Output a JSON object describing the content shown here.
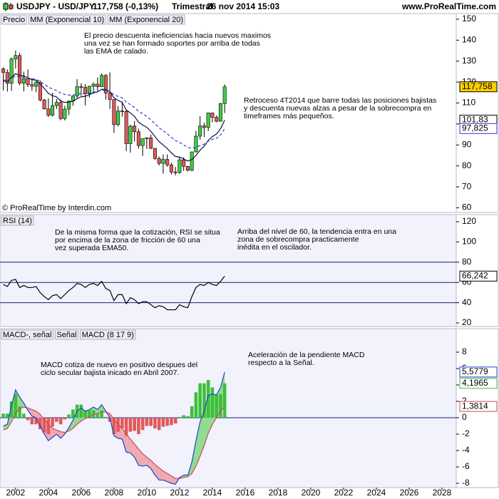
{
  "header": {
    "symbol": "USDJPY - USD/JPY",
    "quote": "117,758 (-0,13%)",
    "period": "Trimestral",
    "date": "26 nov 2014 15:03",
    "site": "www.ProRealTime.com"
  },
  "chart_data": [
    {
      "type": "candlestick",
      "background": "#ffffff",
      "x": [
        2001.25,
        2001.5,
        2001.75,
        2002,
        2002.25,
        2002.5,
        2002.75,
        2003,
        2003.25,
        2003.5,
        2003.75,
        2004,
        2004.25,
        2004.5,
        2004.75,
        2005,
        2005.25,
        2005.5,
        2005.75,
        2006,
        2006.25,
        2006.5,
        2006.75,
        2007,
        2007.25,
        2007.5,
        2007.75,
        2008,
        2008.25,
        2008.5,
        2008.75,
        2009,
        2009.25,
        2009.5,
        2009.75,
        2010,
        2010.25,
        2010.5,
        2010.75,
        2011,
        2011.25,
        2011.5,
        2011.75,
        2012,
        2012.25,
        2012.5,
        2012.75,
        2013,
        2013.25,
        2013.5,
        2013.75,
        2014,
        2014.25,
        2014.5,
        2014.75
      ],
      "xlim": [
        2001.05,
        2028.87
      ],
      "ylim": [
        57.8,
        152.7
      ],
      "yticks": [
        60,
        70,
        80,
        90,
        100,
        110,
        120,
        130,
        140,
        150
      ],
      "series": [
        {
          "name": "Precio",
          "type": "candlestick",
          "color": "#000000",
          "up_color": "#3ccf3c",
          "down_color": "#e05a5a",
          "open": [
            126.3,
            124.6,
            119.4,
            131,
            132.7,
            119.5,
            121.7,
            118.8,
            118,
            119.8,
            111.5,
            107.2,
            104.2,
            108.8,
            110.3,
            102.6,
            107.1,
            110.9,
            113.3,
            117.8,
            117.5,
            114.4,
            118,
            119,
            117.8,
            123.2,
            114.8,
            111.7,
            99.7,
            106.2,
            106,
            90.6,
            99,
            96.3,
            89.7,
            93,
            93.4,
            88.4,
            83.5,
            81.2,
            83.1,
            80.5,
            77.1,
            76.9,
            82.9,
            79.8,
            77.9,
            86.7,
            94.2,
            99.1,
            98.3,
            105.3,
            103.2,
            101.3,
            109.7
          ],
          "high": [
            127,
            126,
            131.8,
            135,
            134,
            125,
            126,
            121.8,
            120.5,
            120.8,
            111.9,
            112.2,
            114.9,
            111.9,
            111.7,
            108.7,
            111.2,
            113.7,
            121.4,
            119.4,
            119,
            118.3,
            119.9,
            122.2,
            124.1,
            123.8,
            124.6,
            111.9,
            108.6,
            110.7,
            106.5,
            99.6,
            101.4,
            97.8,
            93.1,
            93.7,
            94.9,
            88.5,
            84.5,
            85.5,
            85.5,
            81.5,
            79.5,
            84.2,
            84.1,
            80,
            86.8,
            96.7,
            103.7,
            100.6,
            105.4,
            105.4,
            104.1,
            110.1,
            118.9
          ],
          "low": [
            116,
            115.5,
            115.8,
            126.5,
            118.5,
            115.5,
            117.6,
            115.8,
            115.2,
            110.8,
            106.9,
            103.4,
            103.6,
            107.2,
            101.8,
            101.7,
            104.2,
            108.7,
            112.2,
            113.4,
            108.9,
            112.6,
            114.4,
            115.2,
            117.6,
            111.6,
            107.2,
            95.8,
            98.9,
            103.5,
            87.1,
            86.3,
            91.7,
            88.2,
            84.8,
            88.1,
            88,
            82.9,
            80.2,
            76.3,
            79.6,
            75.9,
            75.5,
            76.1,
            77.6,
            77.4,
            77.4,
            86.5,
            92.6,
            93.8,
            96.6,
            100.8,
            100.8,
            101.1,
            105.2
          ],
          "close": [
            124.6,
            119.4,
            131,
            132.7,
            119.5,
            121.7,
            118.8,
            118,
            119.8,
            111.5,
            107.2,
            104.2,
            108.8,
            110.3,
            102.6,
            107.1,
            110.9,
            113.3,
            117.8,
            117.5,
            114.4,
            118,
            119,
            117.8,
            123.2,
            114.8,
            111.7,
            99.7,
            106.2,
            106,
            90.6,
            99,
            96.3,
            89.7,
            93,
            93.4,
            88.4,
            83.5,
            81.2,
            83.1,
            80.5,
            77.1,
            76.9,
            82.9,
            79.8,
            77.9,
            86.7,
            94.2,
            99.1,
            98.3,
            105.3,
            103.2,
            101.3,
            109.7,
            117.758
          ]
        },
        {
          "name": "MM (Exponencial 10)",
          "type": "line",
          "color": "#101040",
          "dash": false,
          "values": [
            120.5,
            120.3,
            122.2,
            124,
            123.2,
            122.9,
            122,
            121.2,
            120.9,
            119.2,
            117,
            114.6,
            113.5,
            112.9,
            111,
            110.3,
            110.4,
            110.9,
            112.1,
            113,
            113.2,
            114,
            114.9,
            115.3,
            116.6,
            116.3,
            115.5,
            112.5,
            111.3,
            110.3,
            106.7,
            105.3,
            103.6,
            100.9,
            99.5,
            98.4,
            96.5,
            94,
            91.6,
            90,
            88.3,
            86.2,
            84.5,
            84.2,
            83.3,
            82.3,
            83,
            85,
            87.5,
            89.4,
            92.2,
            94,
            95.2,
            97.8,
            101.83
          ]
        },
        {
          "name": "MM (Exponencial 20)",
          "type": "line",
          "color": "#2a3fd0",
          "dash": true,
          "values": [
            121,
            120.8,
            121.8,
            122.8,
            122.5,
            122.4,
            122,
            121.6,
            121.3,
            120.3,
            119,
            117.6,
            116.7,
            116,
            114.8,
            114.1,
            113.8,
            113.8,
            114.3,
            114.5,
            114.4,
            114.8,
            115.2,
            115.4,
            116.1,
            115.9,
            115.5,
            114,
            113.2,
            112.5,
            110.4,
            109.3,
            107.9,
            106,
            104.9,
            103.6,
            102,
            100.1,
            98.2,
            96.8,
            95.3,
            93.6,
            92.1,
            91.2,
            90,
            88.8,
            88.5,
            88.8,
            89.7,
            90.4,
            91.8,
            92.7,
            93.2,
            94.8,
            97.825
          ]
        }
      ],
      "markers": [
        {
          "value": 117.758,
          "label": "117,758",
          "color": "#000000",
          "background": "#ffcc00"
        },
        {
          "value": 101.83,
          "label": "101,83",
          "color": "#000000",
          "background": "#ffffff"
        },
        {
          "value": 97.825,
          "label": "97,825",
          "color": "#2a3fd0",
          "background": "#ffffff"
        }
      ],
      "annotations": [
        [
          "El precio descuenta ineficiencias hacia nuevos maximos",
          "una vez se han formado soportes por arriba de todas",
          "las EMA de calado."
        ],
        [
          "Retroceso 4T2014 que barre todas las posiciones bajistas",
          "y descuenta nuevas alzas a pesar de la sobrecompra en",
          "timeframes más pequeños."
        ]
      ],
      "watermark": "© ProRealTime by Interdin.com"
    },
    {
      "type": "line",
      "background": "#f1f2fb",
      "x": [
        2001.25,
        2001.5,
        2001.75,
        2002,
        2002.25,
        2002.5,
        2002.75,
        2003,
        2003.25,
        2003.5,
        2003.75,
        2004,
        2004.25,
        2004.5,
        2004.75,
        2005,
        2005.25,
        2005.5,
        2005.75,
        2006,
        2006.25,
        2006.5,
        2006.75,
        2007,
        2007.25,
        2007.5,
        2007.75,
        2008,
        2008.25,
        2008.5,
        2008.75,
        2009,
        2009.25,
        2009.5,
        2009.75,
        2010,
        2010.25,
        2010.5,
        2010.75,
        2011,
        2011.25,
        2011.5,
        2011.75,
        2012,
        2012.25,
        2012.5,
        2012.75,
        2013,
        2013.25,
        2013.5,
        2013.75,
        2014,
        2014.25,
        2014.5,
        2014.75
      ],
      "xlim": [
        2001.05,
        2028.87
      ],
      "ylim": [
        16.5,
        127
      ],
      "yticks": [
        20,
        40,
        60,
        80,
        100,
        120
      ],
      "levels": [
        40,
        60,
        80
      ],
      "level_color": "#1a1a80",
      "series": [
        {
          "name": "RSI (14)",
          "type": "line",
          "color": "#000000",
          "dash": false,
          "values": [
            58,
            56,
            62,
            63,
            55,
            57,
            55,
            55,
            56,
            50,
            46,
            43,
            47,
            48,
            44,
            48,
            52,
            55,
            59,
            58,
            55,
            58,
            59,
            57,
            61,
            54,
            52,
            42,
            48,
            48,
            39,
            45,
            43,
            39,
            41,
            41,
            38,
            35,
            37,
            36,
            33,
            33,
            33,
            38,
            36,
            35,
            46,
            55,
            58,
            57,
            60,
            58,
            57,
            61,
            66.242
          ]
        }
      ],
      "markers": [
        {
          "value": 66.242,
          "label": "66,242",
          "color": "#000000",
          "background": "#ffffff"
        }
      ],
      "annotations": [
        [
          "De la misma forma que la cotización, RSI se situa",
          "por encima de la zona de fricción de 60 una",
          "vez superada EMA50."
        ],
        [
          "Arriba del nivel de 60, la tendencia entra en una",
          "zona de sobrecompra practicamente",
          "inédita en el oscilador."
        ]
      ]
    },
    {
      "type": "combo",
      "background": "#f1f2fb",
      "x": [
        2001.25,
        2001.5,
        2001.75,
        2002,
        2002.25,
        2002.5,
        2002.75,
        2003,
        2003.25,
        2003.5,
        2003.75,
        2004,
        2004.25,
        2004.5,
        2004.75,
        2005,
        2005.25,
        2005.5,
        2005.75,
        2006,
        2006.25,
        2006.5,
        2006.75,
        2007,
        2007.25,
        2007.5,
        2007.75,
        2008,
        2008.25,
        2008.5,
        2008.75,
        2009,
        2009.25,
        2009.5,
        2009.75,
        2010,
        2010.25,
        2010.5,
        2010.75,
        2011,
        2011.25,
        2011.5,
        2011.75,
        2012,
        2012.25,
        2012.5,
        2012.75,
        2013,
        2013.25,
        2013.5,
        2013.75,
        2014,
        2014.25,
        2014.5,
        2014.75
      ],
      "xlim": [
        2001.05,
        2028.87
      ],
      "xticks": [
        2002,
        2004,
        2006,
        2008,
        2010,
        2012,
        2014,
        2016,
        2018,
        2020,
        2022,
        2024,
        2026,
        2028
      ],
      "ylim": [
        -8.52,
        10.87
      ],
      "yticks": [
        -8,
        -6,
        -4,
        -2,
        0,
        2,
        4,
        6,
        8
      ],
      "zero_color": "#1a1a80",
      "fill": {
        "between": [
          2,
          1
        ],
        "above": "#8fdc8f",
        "below": "#eeaab2"
      },
      "series": [
        {
          "name": "MACD-, señal",
          "type": "bar",
          "color": "#3cbf3c",
          "negative_color": "#e05a5a",
          "values": [
            0.5,
            0.5,
            2,
            2.9,
            1.4,
            0.5,
            -0.3,
            -0.8,
            -0.8,
            -1.4,
            -1.8,
            -2,
            -1.1,
            -0.5,
            -0.8,
            -0.2,
            0.4,
            1,
            1.6,
            1.6,
            0.9,
            0.9,
            0.9,
            0.5,
            0.9,
            0.1,
            -0.5,
            -2,
            -1.7,
            -1.3,
            -2.2,
            -1.7,
            -1.6,
            -2,
            -1.5,
            -1,
            -1,
            -1.3,
            -1.5,
            -1.1,
            -1,
            -0.9,
            -0.7,
            0.1,
            0.3,
            0.2,
            1.4,
            3.1,
            4.2,
            4.2,
            4.6,
            3.7,
            2.8,
            2.9,
            4.1965
          ]
        },
        {
          "name": "Señal",
          "type": "line",
          "color": "#d04a4a",
          "dash": false,
          "values": [
            -1.5,
            -1.3,
            -0.5,
            0.5,
            1.1,
            1.3,
            1.2,
            1,
            0.8,
            0.4,
            -0.2,
            -0.8,
            -1.3,
            -1.5,
            -1.7,
            -1.8,
            -1.6,
            -1.3,
            -0.8,
            -0.4,
            -0.1,
            0.1,
            0.4,
            0.5,
            0.7,
            0.7,
            0.5,
            -0.2,
            -0.8,
            -1.3,
            -2,
            -2.6,
            -3.2,
            -3.8,
            -4.4,
            -4.8,
            -5.2,
            -5.7,
            -6.1,
            -6.5,
            -6.8,
            -7.1,
            -7.4,
            -7.4,
            -7.3,
            -7.2,
            -6.8,
            -5.9,
            -4.7,
            -3.4,
            -1.9,
            -0.8,
            0,
            0.8,
            1.3814
          ]
        },
        {
          "name": "MACD (8 17 9)",
          "type": "line",
          "color": "#2a3fd0",
          "dash": false,
          "values": [
            -1,
            -0.8,
            1.5,
            3.4,
            2.5,
            1.8,
            0.9,
            0.2,
            0,
            -1,
            -2,
            -2.8,
            -2.4,
            -2,
            -2.5,
            -2,
            -1.2,
            -0.3,
            0.8,
            1.2,
            0.8,
            1,
            1.3,
            1,
            1.6,
            0.8,
            0,
            -2.2,
            -2.5,
            -2.6,
            -4.2,
            -4.3,
            -4.8,
            -5.8,
            -5.9,
            -5.8,
            -6.2,
            -7,
            -7.6,
            -7.6,
            -7.8,
            -8,
            -8.1,
            -7.3,
            -7,
            -7,
            -5.4,
            -2.8,
            -0.5,
            0.8,
            2.7,
            2.9,
            2.8,
            3.7,
            5.5779
          ]
        }
      ],
      "markers": [
        {
          "value": 5.5779,
          "label": "5,5779",
          "color": "#2a3fd0",
          "background": "#ffffff"
        },
        {
          "value": 4.1965,
          "label": "4,1965",
          "color": "#3cbf3c",
          "background": "#ffffff"
        },
        {
          "value": 1.3814,
          "label": "1,3814",
          "color": "#d04a4a",
          "background": "#ffffff"
        }
      ],
      "annotations": [
        [
          "MACD cotiza de nuevo en positivo despues del",
          "ciclo secular bajista inicado en Abril 2007."
        ],
        [
          "Aceleración de la pendiente MACD",
          "respecto a la Señal."
        ]
      ]
    }
  ]
}
